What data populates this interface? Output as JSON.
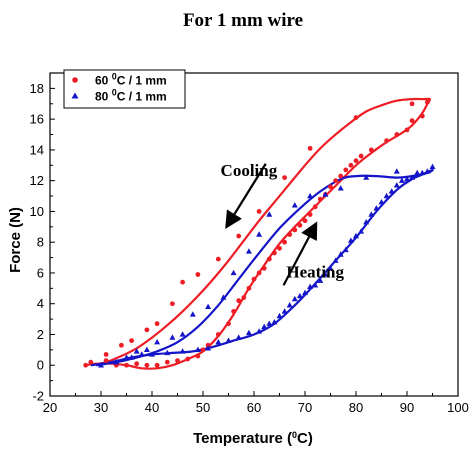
{
  "chart_data": {
    "type": "scatter",
    "title": "For 1 mm wire",
    "xlabel": {
      "main": "Temperature (",
      "sup": "0",
      "end": "C)"
    },
    "ylabel": "Force (N)",
    "xlim": [
      20,
      100
    ],
    "ylim": [
      -2,
      19
    ],
    "xticks": [
      20,
      30,
      40,
      50,
      60,
      70,
      80,
      90,
      100
    ],
    "yticks": [
      -2,
      0,
      2,
      4,
      6,
      8,
      10,
      12,
      14,
      16,
      18
    ],
    "legend_position": "top-left",
    "annotations": [
      {
        "text": "Cooling",
        "x": 59,
        "y": 12.3,
        "arrow": {
          "from": [
            62.3,
            13.1
          ],
          "to": [
            54.8,
            9.1
          ]
        }
      },
      {
        "text": "Heating",
        "x": 72,
        "y": 5.7,
        "arrow": {
          "from": [
            65.8,
            5.2
          ],
          "to": [
            72,
            9.1
          ]
        }
      }
    ],
    "series": [
      {
        "name": {
          "main": "60 ",
          "sup": "0",
          "end": "C / 1 mm"
        },
        "color": "#ee1c25",
        "marker": "circle",
        "points": [
          [
            27,
            0.0
          ],
          [
            31,
            0.3
          ],
          [
            33,
            0.0
          ],
          [
            35,
            0.0
          ],
          [
            37,
            0.1
          ],
          [
            39,
            0.0
          ],
          [
            41,
            0.0
          ],
          [
            43,
            0.2
          ],
          [
            45,
            0.3
          ],
          [
            47,
            0.4
          ],
          [
            49,
            0.6
          ],
          [
            50,
            1.0
          ],
          [
            51,
            1.3
          ],
          [
            53,
            2.0
          ],
          [
            55,
            2.7
          ],
          [
            56,
            3.5
          ],
          [
            57,
            4.2
          ],
          [
            58,
            4.4
          ],
          [
            59,
            5.0
          ],
          [
            60,
            5.6
          ],
          [
            61,
            6.0
          ],
          [
            62,
            6.3
          ],
          [
            63,
            6.9
          ],
          [
            64,
            7.3
          ],
          [
            65,
            7.6
          ],
          [
            66,
            8.0
          ],
          [
            67,
            8.5
          ],
          [
            68,
            8.8
          ],
          [
            69,
            9.1
          ],
          [
            70,
            9.4
          ],
          [
            71,
            9.8
          ],
          [
            72,
            10.3
          ],
          [
            73,
            10.8
          ],
          [
            74,
            11.1
          ],
          [
            75,
            11.6
          ],
          [
            76,
            12.0
          ],
          [
            77,
            12.3
          ],
          [
            78,
            12.7
          ],
          [
            79,
            13.0
          ],
          [
            80,
            13.3
          ],
          [
            81,
            13.6
          ],
          [
            83,
            14.0
          ],
          [
            86,
            14.6
          ],
          [
            88,
            15.0
          ],
          [
            90,
            15.3
          ],
          [
            91,
            15.9
          ],
          [
            93,
            16.2
          ],
          [
            94,
            17.1
          ],
          [
            91,
            17.0
          ],
          [
            80,
            16.1
          ],
          [
            71,
            14.1
          ],
          [
            66,
            12.2
          ],
          [
            61,
            10.0
          ],
          [
            57,
            8.4
          ],
          [
            53,
            6.9
          ],
          [
            49,
            5.9
          ],
          [
            46,
            5.4
          ],
          [
            44,
            4.0
          ],
          [
            41,
            2.7
          ],
          [
            39,
            2.3
          ],
          [
            36,
            1.6
          ],
          [
            34,
            1.3
          ],
          [
            31,
            0.7
          ],
          [
            28,
            0.2
          ]
        ],
        "curve": [
          [
            27,
            0.0
          ],
          [
            29,
            0.1
          ],
          [
            32,
            0.1
          ],
          [
            35,
            0.0
          ],
          [
            38,
            -0.2
          ],
          [
            41,
            -0.2
          ],
          [
            44,
            0.0
          ],
          [
            47,
            0.4
          ],
          [
            50,
            0.9
          ],
          [
            53,
            1.9
          ],
          [
            56,
            3.3
          ],
          [
            59,
            5.0
          ],
          [
            62,
            6.5
          ],
          [
            65,
            7.9
          ],
          [
            68,
            9.0
          ],
          [
            71,
            10.0
          ],
          [
            74,
            11.0
          ],
          [
            77,
            12.0
          ],
          [
            80,
            13.0
          ],
          [
            83,
            13.8
          ],
          [
            86,
            14.5
          ],
          [
            89,
            15.1
          ],
          [
            91,
            15.6
          ],
          [
            93,
            16.4
          ],
          [
            94,
            17.0
          ],
          [
            94.5,
            17.3
          ],
          [
            93.5,
            17.3
          ],
          [
            91,
            17.3
          ],
          [
            88,
            17.2
          ],
          [
            85,
            16.9
          ],
          [
            82,
            16.5
          ],
          [
            79,
            15.8
          ],
          [
            76,
            15.0
          ],
          [
            73,
            14.1
          ],
          [
            70,
            13.0
          ],
          [
            67,
            11.8
          ],
          [
            64,
            10.6
          ],
          [
            61,
            9.4
          ],
          [
            58,
            8.1
          ],
          [
            55,
            6.8
          ],
          [
            52,
            5.6
          ],
          [
            49,
            4.5
          ],
          [
            46,
            3.5
          ],
          [
            43,
            2.6
          ],
          [
            40,
            1.8
          ],
          [
            37,
            1.1
          ],
          [
            34,
            0.6
          ],
          [
            31,
            0.2
          ],
          [
            28,
            0.0
          ]
        ]
      },
      {
        "name": {
          "main": "80 ",
          "sup": "0",
          "end": "C / 1 mm"
        },
        "color": "#1414c8",
        "marker": "triangle",
        "points": [
          [
            30,
            0.0
          ],
          [
            33,
            0.2
          ],
          [
            36,
            0.5
          ],
          [
            38,
            0.7
          ],
          [
            40,
            0.7
          ],
          [
            43,
            0.8
          ],
          [
            46,
            0.9
          ],
          [
            49,
            1.0
          ],
          [
            51,
            1.1
          ],
          [
            53,
            1.5
          ],
          [
            55,
            1.6
          ],
          [
            57,
            1.8
          ],
          [
            59,
            2.1
          ],
          [
            61,
            2.2
          ],
          [
            62,
            2.5
          ],
          [
            63,
            2.7
          ],
          [
            64,
            2.8
          ],
          [
            65,
            3.2
          ],
          [
            66,
            3.5
          ],
          [
            67,
            3.9
          ],
          [
            68,
            4.3
          ],
          [
            69,
            4.5
          ],
          [
            70,
            4.7
          ],
          [
            71,
            5.1
          ],
          [
            72,
            5.2
          ],
          [
            73,
            5.5
          ],
          [
            74,
            5.9
          ],
          [
            75,
            6.3
          ],
          [
            76,
            6.8
          ],
          [
            77,
            7.2
          ],
          [
            78,
            7.5
          ],
          [
            79,
            8.1
          ],
          [
            80,
            8.4
          ],
          [
            81,
            8.7
          ],
          [
            82,
            9.3
          ],
          [
            83,
            9.8
          ],
          [
            84,
            10.2
          ],
          [
            85,
            10.6
          ],
          [
            86,
            11.0
          ],
          [
            87,
            11.3
          ],
          [
            88,
            11.7
          ],
          [
            89,
            12.0
          ],
          [
            90,
            12.1
          ],
          [
            91,
            12.2
          ],
          [
            92,
            12.4
          ],
          [
            93,
            12.5
          ],
          [
            94,
            12.6
          ],
          [
            95,
            12.9
          ],
          [
            92,
            12.5
          ],
          [
            88,
            12.6
          ],
          [
            82,
            12.2
          ],
          [
            77,
            11.5
          ],
          [
            74,
            11.1
          ],
          [
            71,
            11.0
          ],
          [
            68,
            10.4
          ],
          [
            63,
            9.8
          ],
          [
            61,
            8.5
          ],
          [
            59,
            7.4
          ],
          [
            56,
            6.0
          ],
          [
            54,
            4.4
          ],
          [
            51,
            3.8
          ],
          [
            48,
            3.3
          ],
          [
            46,
            2.0
          ],
          [
            44,
            1.8
          ],
          [
            41,
            1.5
          ],
          [
            39,
            1.0
          ],
          [
            37,
            0.9
          ],
          [
            35,
            0.5
          ],
          [
            33,
            0.2
          ]
        ],
        "curve": [
          [
            28,
            0.0
          ],
          [
            32,
            0.2
          ],
          [
            36,
            0.5
          ],
          [
            40,
            0.7
          ],
          [
            44,
            0.8
          ],
          [
            48,
            0.9
          ],
          [
            52,
            1.2
          ],
          [
            56,
            1.6
          ],
          [
            60,
            2.0
          ],
          [
            64,
            2.7
          ],
          [
            68,
            3.9
          ],
          [
            72,
            5.3
          ],
          [
            76,
            6.8
          ],
          [
            80,
            8.3
          ],
          [
            84,
            10.0
          ],
          [
            88,
            11.4
          ],
          [
            91,
            12.1
          ],
          [
            93,
            12.4
          ],
          [
            95,
            12.7
          ],
          [
            94,
            12.5
          ],
          [
            91,
            12.3
          ],
          [
            88,
            12.2
          ],
          [
            84,
            12.3
          ],
          [
            80,
            12.3
          ],
          [
            77,
            12.1
          ],
          [
            73,
            11.3
          ],
          [
            69,
            10.2
          ],
          [
            65,
            8.9
          ],
          [
            61,
            7.3
          ],
          [
            57,
            5.6
          ],
          [
            53,
            3.9
          ],
          [
            49,
            2.5
          ],
          [
            45,
            1.5
          ],
          [
            41,
            0.9
          ],
          [
            37,
            0.5
          ],
          [
            33,
            0.2
          ],
          [
            29,
            0.0
          ]
        ]
      }
    ]
  }
}
